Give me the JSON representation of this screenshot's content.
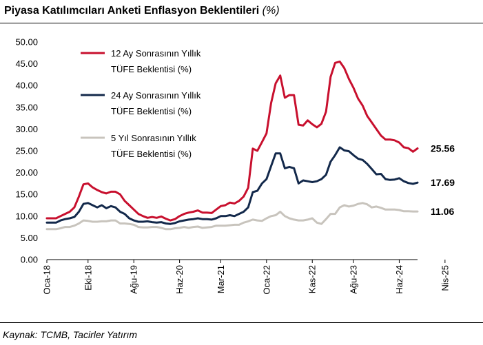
{
  "header": {
    "title": "Piyasa Katılımcıları Anketi Enflasyon Beklentileri",
    "unit": "(%)"
  },
  "footer": {
    "source": "Kaynak: TCMB, Tacirler Yatırım"
  },
  "chart_data": {
    "type": "line",
    "title": "Piyasa Katılımcıları Anketi Enflasyon Beklentileri",
    "unit": "(%)",
    "xlabel": "",
    "ylabel": "",
    "ylim": [
      0,
      50
    ],
    "y_ticks": [
      "0.00",
      "5.00",
      "10.00",
      "15.00",
      "20.00",
      "25.00",
      "30.00",
      "35.00",
      "40.00",
      "45.00",
      "50.00"
    ],
    "x_ticks": [
      "Oca-18",
      "Eki-18",
      "Ağu-19",
      "Haz-20",
      "Mar-21",
      "Oca-22",
      "Kas-22",
      "Ağu-23",
      "Haz-24",
      "Nis-25"
    ],
    "x_tick_index": [
      0,
      9,
      19,
      29,
      38,
      48,
      58,
      67,
      77,
      87
    ],
    "grid": false,
    "legend_position": "top-left",
    "x_start": "Oca-18",
    "x_end": "Nis-25",
    "colors": {
      "series_12m": "#c8102e",
      "series_24m": "#13294b",
      "series_5y": "#c8c4bd"
    },
    "series": [
      {
        "name": "12 Ay Sonrasının Yıllık TÜFE Beklentisi (%)",
        "color": "#c8102e",
        "end_label": "25.56",
        "values": [
          9.5,
          9.5,
          9.5,
          10.0,
          10.5,
          11.0,
          12.0,
          14.5,
          17.3,
          17.5,
          16.6,
          16.0,
          15.5,
          15.2,
          15.6,
          15.6,
          15.0,
          13.5,
          12.5,
          11.5,
          10.5,
          10.0,
          9.6,
          9.8,
          9.6,
          9.9,
          9.4,
          9.0,
          9.3,
          10.0,
          10.5,
          10.8,
          11.0,
          11.3,
          10.8,
          10.8,
          10.7,
          11.5,
          12.3,
          12.5,
          13.1,
          12.9,
          13.5,
          14.5,
          16.5,
          25.5,
          25.0,
          27.0,
          29.0,
          36.0,
          40.5,
          42.3,
          37.2,
          37.8,
          37.8,
          31.0,
          30.8,
          32.0,
          31.1,
          30.4,
          31.2,
          34.0,
          42.0,
          45.2,
          45.5,
          44.0,
          41.5,
          39.5,
          37.0,
          35.4,
          33.0,
          31.5,
          30.0,
          28.5,
          27.6,
          27.6,
          27.4,
          26.9,
          25.8,
          25.6,
          24.8,
          25.56
        ]
      },
      {
        "name": "24 Ay Sonrasının Yıllık TÜFE Beklentisi (%)",
        "color": "#13294b",
        "end_label": "17.69",
        "values": [
          8.5,
          8.5,
          8.5,
          9.0,
          9.3,
          9.5,
          9.8,
          11.0,
          12.8,
          13.0,
          12.5,
          12.0,
          12.5,
          11.8,
          12.3,
          12.0,
          11.0,
          10.5,
          9.5,
          9.0,
          8.7,
          8.7,
          8.8,
          8.6,
          8.5,
          8.6,
          8.3,
          8.2,
          8.4,
          8.8,
          9.0,
          9.2,
          9.3,
          9.5,
          9.3,
          9.3,
          9.2,
          9.5,
          10.0,
          10.0,
          10.2,
          10.0,
          10.5,
          11.0,
          12.0,
          15.5,
          15.8,
          17.5,
          18.5,
          21.5,
          24.4,
          24.4,
          21.0,
          21.3,
          21.0,
          17.5,
          18.2,
          18.0,
          17.8,
          18.0,
          18.5,
          19.5,
          22.5,
          24.0,
          25.8,
          25.1,
          24.9,
          24.0,
          23.2,
          22.9,
          22.0,
          20.8,
          19.6,
          19.7,
          18.5,
          18.3,
          18.4,
          18.7,
          18.0,
          17.6,
          17.4,
          17.69
        ]
      },
      {
        "name": "5 Yıl Sonrasının Yıllık TÜFE Beklentisi (%)",
        "color": "#c8c4bd",
        "end_label": "11.06",
        "values": [
          7.0,
          7.0,
          7.0,
          7.2,
          7.5,
          7.5,
          7.8,
          8.3,
          9.0,
          8.9,
          8.7,
          8.7,
          8.8,
          8.8,
          9.0,
          9.0,
          8.3,
          8.3,
          8.2,
          8.0,
          7.5,
          7.4,
          7.4,
          7.5,
          7.5,
          7.3,
          7.0,
          7.0,
          7.2,
          7.3,
          7.5,
          7.3,
          7.5,
          7.6,
          7.3,
          7.4,
          7.5,
          7.8,
          7.8,
          7.8,
          7.9,
          8.0,
          8.0,
          8.5,
          8.8,
          9.2,
          9.0,
          8.9,
          9.5,
          10.0,
          10.2,
          11.0,
          10.0,
          9.5,
          9.2,
          9.0,
          9.0,
          9.2,
          9.5,
          8.5,
          8.2,
          9.3,
          10.5,
          10.5,
          12.0,
          12.5,
          12.2,
          12.4,
          12.8,
          13.0,
          12.7,
          12.0,
          12.2,
          11.9,
          11.5,
          11.5,
          11.5,
          11.4,
          11.1,
          11.1,
          11.06,
          11.06
        ]
      }
    ]
  }
}
